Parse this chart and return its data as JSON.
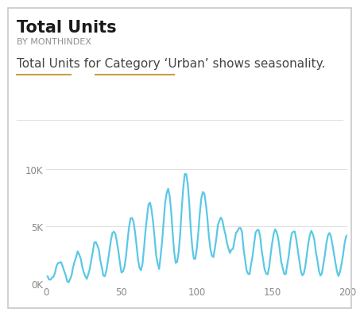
{
  "title": "Total Units",
  "subtitle": "BY MONTHINDEX",
  "insight_text": "Total Units for Category ‘Urban’ shows seasonality.",
  "line_color": "#5BC8E5",
  "background_color": "#FFFFFF",
  "border_color": "#C8C8C8",
  "xlim": [
    0,
    200
  ],
  "ylim": [
    0,
    11000
  ],
  "xticks": [
    0,
    50,
    100,
    150,
    200
  ],
  "ytick_labels": [
    "0K",
    "5K",
    "10K"
  ],
  "ytick_values": [
    0,
    5000,
    10000
  ],
  "grid_color": "#E0E0E0",
  "title_fontsize": 15,
  "subtitle_fontsize": 8,
  "insight_fontsize": 11,
  "axis_fontsize": 8.5,
  "line_width": 1.6,
  "underline_color": "#C8A040",
  "seed": 42,
  "period": 12
}
